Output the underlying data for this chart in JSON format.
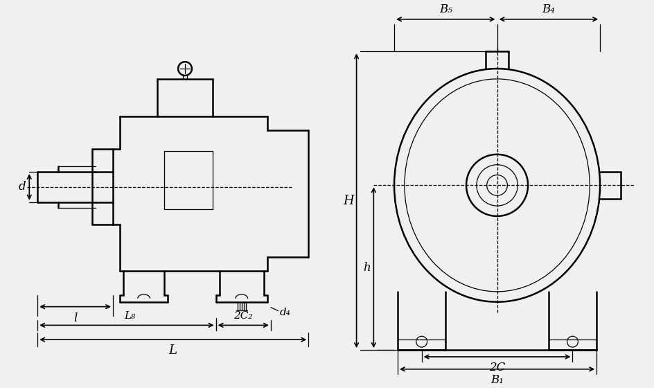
{
  "bg_color": "#f0f0f0",
  "line_color": "#000000",
  "dim_color": "#000000",
  "lw_main": 1.8,
  "lw_thin": 0.9,
  "lw_dash": 0.9,
  "fig_w": 9.44,
  "fig_h": 5.6,
  "labels": {
    "d": "d",
    "l": "l",
    "L8": "L₈",
    "2C2": "2C₂",
    "d4": "d₄",
    "L": "L",
    "H": "H",
    "h": "h",
    "2C": "2C",
    "B1": "B₁",
    "B4": "B₄",
    "B5": "B₅"
  }
}
